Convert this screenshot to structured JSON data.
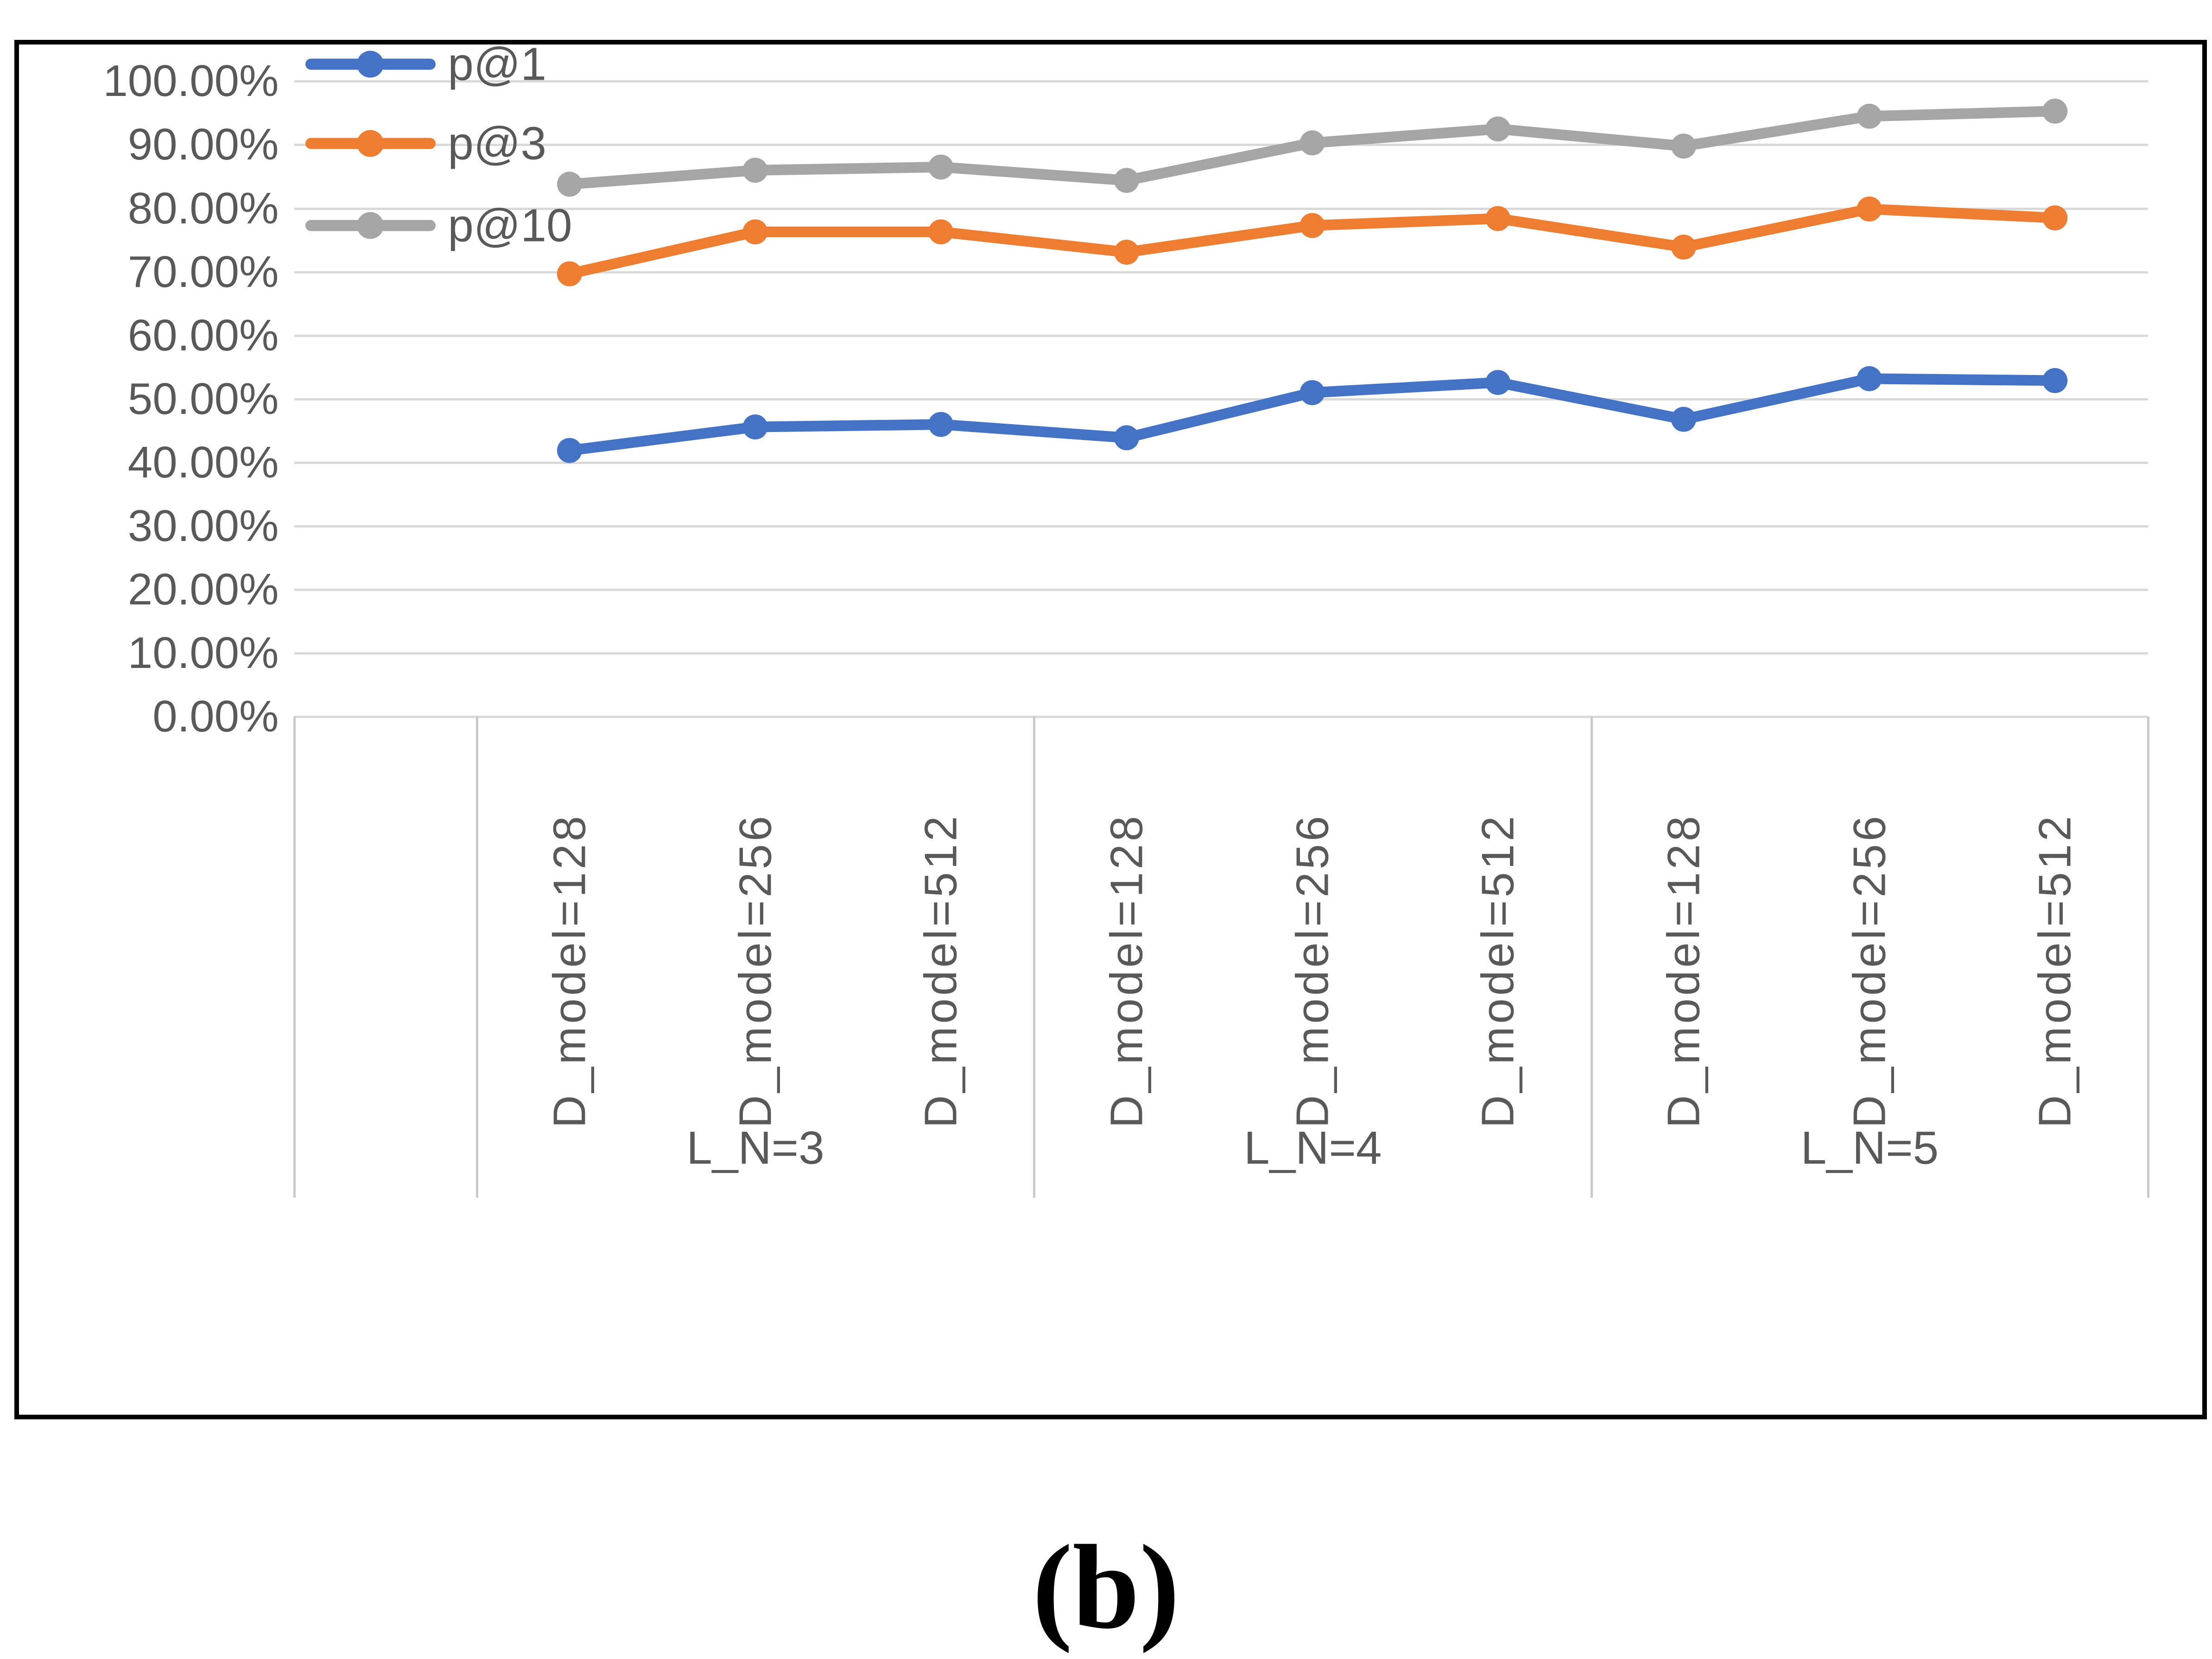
{
  "figure": {
    "caption": "(b)"
  },
  "chart_data": {
    "type": "line",
    "title": "",
    "xlabel": "",
    "ylabel": "",
    "legend_position": "top-left",
    "grid": true,
    "background": "#ffffff",
    "gridline_color": "#d9d9d9",
    "band_line_color": "#c9c9c9",
    "text_color": "#595959",
    "border_color": "#000000",
    "y_axis": {
      "min": 0,
      "max": 100,
      "step": 10,
      "tick_labels": [
        "100.00%",
        "90.00%",
        "80.00%",
        "70.00%",
        "60.00%",
        "50.00%",
        "40.00%",
        "30.00%",
        "20.00%",
        "10.00%",
        "0.00%"
      ]
    },
    "groups": [
      "L_N=3",
      "L_N=4",
      "L_N=5"
    ],
    "categories": [
      {
        "group": "L_N=3",
        "label": "D_model=128"
      },
      {
        "group": "L_N=3",
        "label": "D_model=256"
      },
      {
        "group": "L_N=3",
        "label": "D_model=512"
      },
      {
        "group": "L_N=4",
        "label": "D_model=128"
      },
      {
        "group": "L_N=4",
        "label": "D_model=256"
      },
      {
        "group": "L_N=4",
        "label": "D_model=512"
      },
      {
        "group": "L_N=5",
        "label": "D_model=128"
      },
      {
        "group": "L_N=5",
        "label": "D_model=256"
      },
      {
        "group": "L_N=5",
        "label": "D_model=512"
      }
    ],
    "series": [
      {
        "name": "p@1",
        "color": "#4472C4",
        "values": [
          41.9,
          45.6,
          46.0,
          43.9,
          51.0,
          52.6,
          46.8,
          53.2,
          52.9
        ]
      },
      {
        "name": "p@3",
        "color": "#ED7D31",
        "values": [
          69.7,
          76.3,
          76.3,
          73.1,
          77.3,
          78.4,
          73.9,
          79.9,
          78.5
        ]
      },
      {
        "name": "p@10",
        "color": "#A5A5A5",
        "values": [
          83.8,
          86.0,
          86.5,
          84.4,
          90.3,
          92.5,
          89.8,
          94.5,
          95.3
        ]
      }
    ]
  }
}
